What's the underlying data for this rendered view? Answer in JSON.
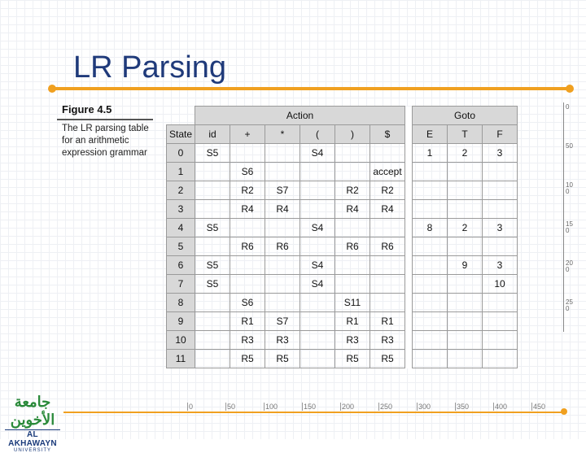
{
  "title": "LR Parsing",
  "figure": {
    "label": "Figure 4.5",
    "caption": "The LR parsing table for an arithmetic expression grammar"
  },
  "table": {
    "action_label": "Action",
    "goto_label": "Goto",
    "state_label": "State",
    "action_cols": [
      "id",
      "+",
      "*",
      "(",
      ")",
      "$"
    ],
    "goto_cols": [
      "E",
      "T",
      "F"
    ],
    "rows": [
      {
        "state": "0",
        "action": [
          "S5",
          "",
          "",
          "S4",
          "",
          ""
        ],
        "goto": [
          "1",
          "2",
          "3"
        ]
      },
      {
        "state": "1",
        "action": [
          "",
          "S6",
          "",
          "",
          "",
          "accept"
        ],
        "goto": [
          "",
          "",
          ""
        ]
      },
      {
        "state": "2",
        "action": [
          "",
          "R2",
          "S7",
          "",
          "R2",
          "R2"
        ],
        "goto": [
          "",
          "",
          ""
        ]
      },
      {
        "state": "3",
        "action": [
          "",
          "R4",
          "R4",
          "",
          "R4",
          "R4"
        ],
        "goto": [
          "",
          "",
          ""
        ]
      },
      {
        "state": "4",
        "action": [
          "S5",
          "",
          "",
          "S4",
          "",
          ""
        ],
        "goto": [
          "8",
          "2",
          "3"
        ]
      },
      {
        "state": "5",
        "action": [
          "",
          "R6",
          "R6",
          "",
          "R6",
          "R6"
        ],
        "goto": [
          "",
          "",
          ""
        ]
      },
      {
        "state": "6",
        "action": [
          "S5",
          "",
          "",
          "S4",
          "",
          ""
        ],
        "goto": [
          "",
          "9",
          "3"
        ]
      },
      {
        "state": "7",
        "action": [
          "S5",
          "",
          "",
          "S4",
          "",
          ""
        ],
        "goto": [
          "",
          "",
          "10"
        ]
      },
      {
        "state": "8",
        "action": [
          "",
          "S6",
          "",
          "",
          "S11",
          ""
        ],
        "goto": [
          "",
          "",
          ""
        ]
      },
      {
        "state": "9",
        "action": [
          "",
          "R1",
          "S7",
          "",
          "R1",
          "R1"
        ],
        "goto": [
          "",
          "",
          ""
        ]
      },
      {
        "state": "10",
        "action": [
          "",
          "R3",
          "R3",
          "",
          "R3",
          "R3"
        ],
        "goto": [
          "",
          "",
          ""
        ]
      },
      {
        "state": "11",
        "action": [
          "",
          "R5",
          "R5",
          "",
          "R5",
          "R5"
        ],
        "goto": [
          "",
          "",
          ""
        ]
      }
    ]
  },
  "ruler_vertical": [
    "0",
    "50",
    "100",
    "150",
    "200",
    "250"
  ],
  "ruler_horizontal": [
    "0",
    "50",
    "100",
    "150",
    "200",
    "250",
    "300",
    "350",
    "400",
    "450"
  ],
  "logo": {
    "arabic": "جامعة الأخوين",
    "english": "AL AKHAWAYN",
    "sub": "UNIVERSITY"
  },
  "colors": {
    "title": "#1f3a7a",
    "accent": "#f0a020",
    "header_fill": "#d8d8d8"
  }
}
